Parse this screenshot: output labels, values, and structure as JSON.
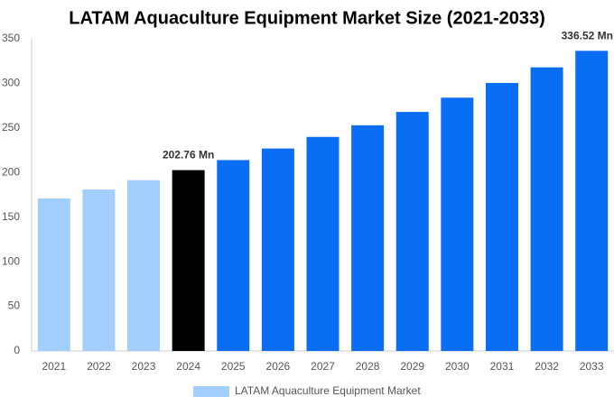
{
  "chart_data": {
    "type": "bar",
    "title": "LATAM Aquaculture Equipment Market Size (2021-2033)",
    "categories": [
      "2021",
      "2022",
      "2023",
      "2024",
      "2025",
      "2026",
      "2027",
      "2028",
      "2029",
      "2030",
      "2031",
      "2032",
      "2033"
    ],
    "series": [
      {
        "name": "LATAM Aquaculture Equipment Market",
        "color": "#a3cfff",
        "values": [
          171,
          181,
          191.5,
          202.76,
          214,
          227,
          240,
          253,
          268,
          284,
          300.5,
          318,
          336.52
        ],
        "value_labels": [
          null,
          null,
          null,
          "202.76 Mn",
          null,
          null,
          null,
          null,
          null,
          null,
          null,
          null,
          "336.52 Mn"
        ],
        "bar_colors": [
          "#a3cfff",
          "#a3cfff",
          "#a3cfff",
          "#000000",
          "#0a6ef5",
          "#0a6ef5",
          "#0a6ef5",
          "#0a6ef5",
          "#0a6ef5",
          "#0a6ef5",
          "#0a6ef5",
          "#0a6ef5",
          "#0a6ef5"
        ]
      }
    ],
    "ylim": [
      0,
      350
    ],
    "yticks": [
      0,
      50,
      100,
      150,
      200,
      250,
      300,
      350
    ],
    "grid": false
  }
}
